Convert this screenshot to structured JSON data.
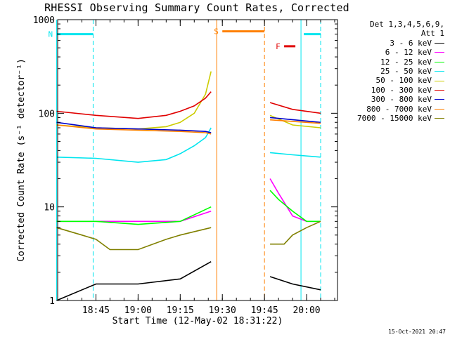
{
  "chart_data": {
    "type": "line",
    "title": "RHESSI Observing Summary Count Rates, Corrected",
    "xlabel": "Start Time (12-May-02 18:31:22)",
    "ylabel": "Corrected Count Rate (s⁻¹ detector⁻¹)",
    "yscale": "log",
    "ylim": [
      1,
      1000
    ],
    "y_ticks": [
      "1",
      "10",
      "100",
      "1000"
    ],
    "xlim": [
      "18:31:22",
      "20:11:00"
    ],
    "x_ticks": [
      "18:45",
      "19:00",
      "19:15",
      "19:30",
      "19:45",
      "20:00"
    ],
    "legend_header": [
      "Det 1,3,4,5,6,9,",
      "Att 1"
    ],
    "series": [
      {
        "name": "3 - 6 keV",
        "color": "#000000",
        "x": [
          "18:31",
          "18:45",
          "19:00",
          "19:15",
          "19:26",
          "19:47",
          "19:55",
          "20:05"
        ],
        "values": [
          1.0,
          1.5,
          1.5,
          1.7,
          2.6,
          1.8,
          1.5,
          1.3
        ]
      },
      {
        "name": "6 - 12 keV",
        "color": "#ff00ff",
        "x": [
          "18:31",
          "18:45",
          "19:00",
          "19:15",
          "19:26",
          "19:47",
          "19:50",
          "19:55",
          "20:00",
          "20:05"
        ],
        "values": [
          7,
          7,
          7,
          7,
          9,
          20,
          14,
          8,
          7,
          7
        ]
      },
      {
        "name": "12 - 25 keV",
        "color": "#00ff00",
        "x": [
          "18:31",
          "18:45",
          "19:00",
          "19:15",
          "19:26",
          "19:47",
          "19:50",
          "19:55",
          "20:00",
          "20:05"
        ],
        "values": [
          7,
          7,
          6.5,
          7,
          10,
          15,
          12,
          9,
          7,
          7
        ]
      },
      {
        "name": "25 - 50 keV",
        "color": "#00e5ee",
        "x": [
          "18:31",
          "18:45",
          "19:00",
          "19:10",
          "19:15",
          "19:20",
          "19:24",
          "19:26",
          "19:47",
          "19:55",
          "20:05"
        ],
        "values": [
          34,
          33,
          30,
          32,
          37,
          45,
          55,
          70,
          38,
          36,
          34
        ]
      },
      {
        "name": "50 - 100 keV",
        "color": "#cccc00",
        "x": [
          "18:31",
          "18:45",
          "19:00",
          "19:10",
          "19:15",
          "19:20",
          "19:24",
          "19:26",
          "19:47",
          "19:55",
          "20:05"
        ],
        "values": [
          75,
          70,
          68,
          72,
          80,
          100,
          160,
          280,
          95,
          75,
          70
        ]
      },
      {
        "name": "100 - 300 keV",
        "color": "#e00000",
        "x": [
          "18:31",
          "18:45",
          "19:00",
          "19:10",
          "19:15",
          "19:20",
          "19:24",
          "19:26",
          "19:47",
          "19:55",
          "20:05"
        ],
        "values": [
          105,
          95,
          88,
          95,
          105,
          120,
          145,
          170,
          130,
          110,
          100
        ]
      },
      {
        "name": "300 - 800 keV",
        "color": "#0000cc",
        "x": [
          "18:31",
          "18:45",
          "19:00",
          "19:15",
          "19:24",
          "19:26",
          "19:47",
          "20:05"
        ],
        "values": [
          80,
          70,
          68,
          66,
          64,
          62,
          90,
          80
        ]
      },
      {
        "name": "800 - 7000 keV",
        "color": "#ff8000",
        "x": [
          "18:31",
          "18:45",
          "19:00",
          "19:15",
          "19:24",
          "19:26",
          "19:47",
          "20:05"
        ],
        "values": [
          75,
          68,
          66,
          64,
          62,
          60,
          85,
          78
        ]
      },
      {
        "name": "7000 - 15000 keV",
        "color": "#808000",
        "x": [
          "18:31",
          "18:40",
          "18:45",
          "18:50",
          "19:00",
          "19:10",
          "19:15",
          "19:26",
          "19:47",
          "19:52",
          "19:55",
          "20:00",
          "20:05"
        ],
        "values": [
          6,
          5,
          4.5,
          3.5,
          3.5,
          4.5,
          5,
          6,
          4,
          4,
          5,
          6,
          7
        ]
      }
    ],
    "annotations": [
      {
        "text": "N",
        "color": "#00e5ee",
        "x_from": "18:31",
        "x_to": "18:44",
        "y": 700
      },
      {
        "text": "S",
        "color": "#ff8000",
        "x_from": "19:30",
        "x_to": "19:45",
        "y": 750
      },
      {
        "text": "F",
        "color": "#e00000",
        "x_from": "19:52",
        "x_to": "19:56",
        "y": 520
      },
      {
        "text": "",
        "color": "#00e5ee",
        "x_from": "19:59",
        "x_to": "20:05",
        "y": 700
      }
    ],
    "vlines": [
      {
        "x": "18:31",
        "color": "#00e5ee",
        "style": "solid"
      },
      {
        "x": "18:44",
        "color": "#00e5ee",
        "style": "dashed"
      },
      {
        "x": "19:28",
        "color": "#ff8000",
        "style": "solid"
      },
      {
        "x": "19:45",
        "color": "#ff8000",
        "style": "dashed"
      },
      {
        "x": "19:58",
        "color": "#00e5ee",
        "style": "solid"
      },
      {
        "x": "20:05",
        "color": "#00e5ee",
        "style": "dashed"
      }
    ],
    "data_gap": [
      "19:27",
      "19:46"
    ],
    "grid": false,
    "legend_position": "top-right"
  },
  "footer_timestamp": "15-Oct-2021 20:47"
}
